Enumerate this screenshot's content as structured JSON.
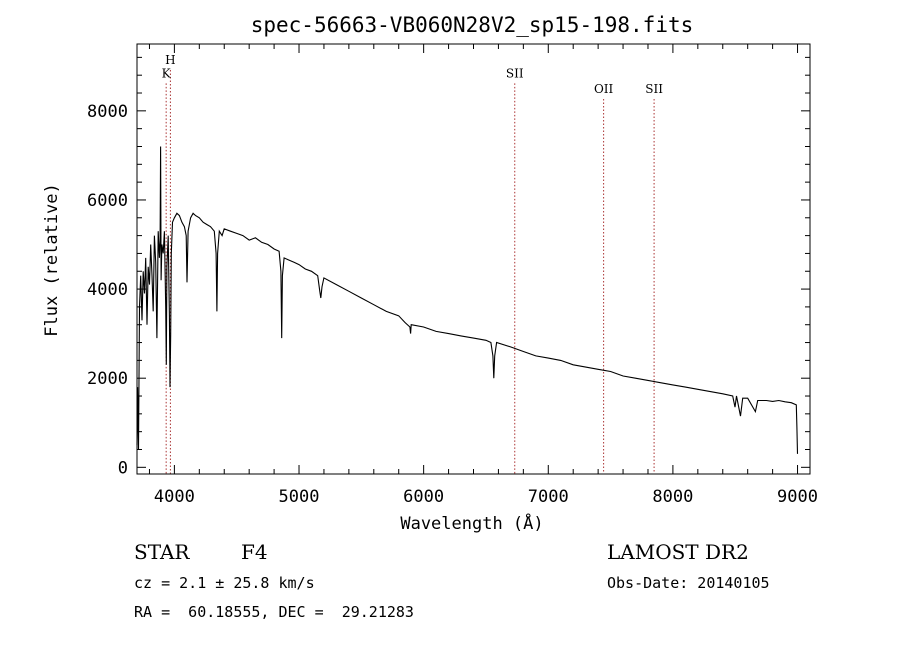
{
  "chart_data": {
    "type": "line",
    "title": "spec-56663-VB060N28V2_sp15-198.fits",
    "xlabel": "Wavelength (Å)",
    "ylabel": "Flux (relative)",
    "xlim": [
      3700,
      9100
    ],
    "ylim": [
      -150,
      9500
    ],
    "x_ticks": [
      4000,
      5000,
      6000,
      7000,
      8000,
      9000
    ],
    "y_ticks": [
      0,
      2000,
      4000,
      6000,
      8000
    ],
    "grid": false,
    "series": [
      {
        "points": [
          [
            3700,
            500
          ],
          [
            3705,
            1800
          ],
          [
            3712,
            400
          ],
          [
            3720,
            3600
          ],
          [
            3730,
            4300
          ],
          [
            3740,
            3300
          ],
          [
            3750,
            4400
          ],
          [
            3760,
            3900
          ],
          [
            3770,
            4700
          ],
          [
            3780,
            3200
          ],
          [
            3790,
            4500
          ],
          [
            3800,
            4100
          ],
          [
            3810,
            5000
          ],
          [
            3820,
            4300
          ],
          [
            3830,
            3500
          ],
          [
            3840,
            5200
          ],
          [
            3850,
            4600
          ],
          [
            3860,
            2900
          ],
          [
            3870,
            5300
          ],
          [
            3880,
            4700
          ],
          [
            3885,
            5100
          ],
          [
            3889,
            7200
          ],
          [
            3893,
            4200
          ],
          [
            3900,
            5000
          ],
          [
            3910,
            4800
          ],
          [
            3920,
            5300
          ],
          [
            3930,
            3600
          ],
          [
            3935,
            2300
          ],
          [
            3940,
            4500
          ],
          [
            3950,
            5200
          ],
          [
            3960,
            3400
          ],
          [
            3965,
            1800
          ],
          [
            3970,
            3000
          ],
          [
            3975,
            4800
          ],
          [
            3985,
            5500
          ],
          [
            4000,
            5600
          ],
          [
            4020,
            5700
          ],
          [
            4040,
            5650
          ],
          [
            4060,
            5500
          ],
          [
            4080,
            5400
          ],
          [
            4095,
            5200
          ],
          [
            4101,
            4150
          ],
          [
            4110,
            5300
          ],
          [
            4130,
            5600
          ],
          [
            4150,
            5700
          ],
          [
            4170,
            5650
          ],
          [
            4200,
            5600
          ],
          [
            4230,
            5500
          ],
          [
            4260,
            5450
          ],
          [
            4290,
            5400
          ],
          [
            4320,
            5300
          ],
          [
            4335,
            4800
          ],
          [
            4341,
            3500
          ],
          [
            4347,
            4800
          ],
          [
            4360,
            5300
          ],
          [
            4383,
            5200
          ],
          [
            4400,
            5350
          ],
          [
            4450,
            5300
          ],
          [
            4500,
            5250
          ],
          [
            4550,
            5200
          ],
          [
            4600,
            5100
          ],
          [
            4650,
            5150
          ],
          [
            4700,
            5050
          ],
          [
            4750,
            5000
          ],
          [
            4800,
            4900
          ],
          [
            4840,
            4850
          ],
          [
            4855,
            4400
          ],
          [
            4861,
            2900
          ],
          [
            4867,
            4300
          ],
          [
            4880,
            4700
          ],
          [
            4920,
            4650
          ],
          [
            4960,
            4600
          ],
          [
            5000,
            4550
          ],
          [
            5050,
            4450
          ],
          [
            5100,
            4400
          ],
          [
            5150,
            4300
          ],
          [
            5167,
            3950
          ],
          [
            5175,
            3800
          ],
          [
            5184,
            4050
          ],
          [
            5200,
            4250
          ],
          [
            5300,
            4100
          ],
          [
            5400,
            3950
          ],
          [
            5500,
            3800
          ],
          [
            5600,
            3650
          ],
          [
            5700,
            3500
          ],
          [
            5800,
            3400
          ],
          [
            5850,
            3250
          ],
          [
            5890,
            3150
          ],
          [
            5895,
            3000
          ],
          [
            5900,
            3200
          ],
          [
            6000,
            3150
          ],
          [
            6100,
            3050
          ],
          [
            6200,
            3000
          ],
          [
            6300,
            2950
          ],
          [
            6400,
            2900
          ],
          [
            6500,
            2850
          ],
          [
            6540,
            2800
          ],
          [
            6556,
            2500
          ],
          [
            6563,
            2000
          ],
          [
            6570,
            2500
          ],
          [
            6585,
            2800
          ],
          [
            6700,
            2700
          ],
          [
            6800,
            2600
          ],
          [
            6900,
            2500
          ],
          [
            7000,
            2450
          ],
          [
            7100,
            2400
          ],
          [
            7200,
            2300
          ],
          [
            7300,
            2250
          ],
          [
            7400,
            2200
          ],
          [
            7500,
            2150
          ],
          [
            7600,
            2050
          ],
          [
            7700,
            2000
          ],
          [
            7800,
            1950
          ],
          [
            7900,
            1900
          ],
          [
            8000,
            1850
          ],
          [
            8100,
            1800
          ],
          [
            8200,
            1750
          ],
          [
            8300,
            1700
          ],
          [
            8400,
            1650
          ],
          [
            8480,
            1600
          ],
          [
            8498,
            1350
          ],
          [
            8510,
            1600
          ],
          [
            8542,
            1150
          ],
          [
            8560,
            1550
          ],
          [
            8600,
            1550
          ],
          [
            8662,
            1250
          ],
          [
            8680,
            1500
          ],
          [
            8750,
            1500
          ],
          [
            8800,
            1480
          ],
          [
            8850,
            1500
          ],
          [
            8900,
            1470
          ],
          [
            8950,
            1450
          ],
          [
            8990,
            1400
          ],
          [
            8995,
            900
          ],
          [
            9000,
            300
          ]
        ]
      }
    ],
    "line_markers": [
      {
        "x": 3934,
        "label": "K",
        "label_flux": 8750
      },
      {
        "x": 3968,
        "label": "H",
        "label_flux": 9050
      },
      {
        "x": 6731,
        "label": "SII",
        "label_flux": 8750
      },
      {
        "x": 7444,
        "label": "OII",
        "label_flux": 8400
      },
      {
        "x": 7849,
        "label": "SII",
        "label_flux": 8400
      }
    ],
    "colors": {
      "spectrum": "#000000",
      "markers": "#aa3333",
      "axes": "#000000"
    }
  },
  "info": {
    "object_class": "STAR",
    "subclass": "F4",
    "survey": "LAMOST DR2",
    "redshift": "cz = 2.1 ± 25.8 km/s",
    "obs_date": "Obs-Date: 20140105",
    "coords": "RA =  60.18555, DEC =  29.21283"
  }
}
